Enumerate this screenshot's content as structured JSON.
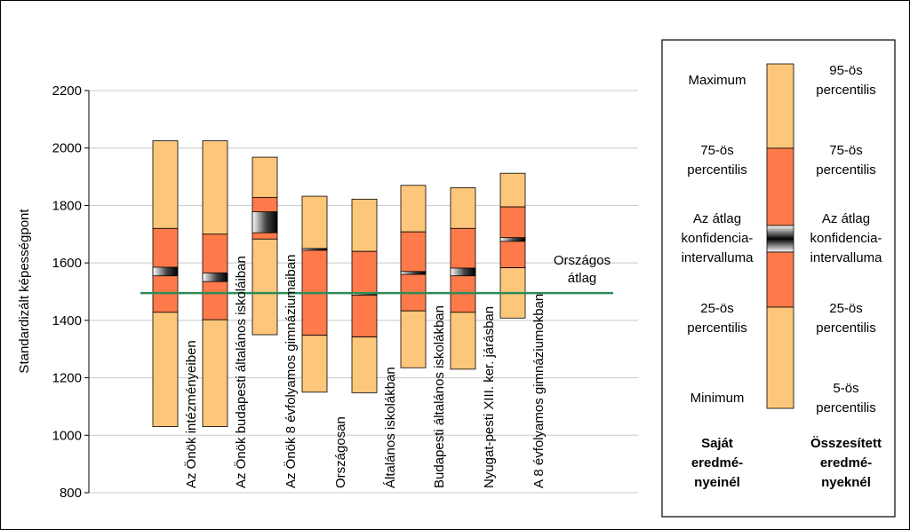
{
  "chart_data": {
    "type": "box",
    "ylabel": "Standardizált képességpont",
    "ylim": [
      800,
      2200
    ],
    "yticks": [
      800,
      1000,
      1200,
      1400,
      1600,
      1800,
      2000,
      2200
    ],
    "grid": true,
    "reference_line": {
      "value": 1495,
      "label_line1": "Országos",
      "label_line2": "átlag",
      "color": "#2e8b57"
    },
    "colors": {
      "outer": "#fcc77a",
      "inner": "#ff7a4b",
      "ci_dark": "#000000",
      "ci_light": "#ffffff",
      "frame": "#000000",
      "grid": "#c8c8c8"
    },
    "categories": [
      "Az Önök intézményeiben",
      "Az Önök budapesti általános iskoláiban",
      "Az Önök 8 évfolyamos gimnáziumaiban",
      "Országosan",
      "Általános iskolákban",
      "Budapesti általános iskolákban",
      "Nyugat-pesti XIII. ker. járásban",
      "A 8 évfolyamos gimnáziumokban"
    ],
    "boxes": [
      {
        "p5": 1030,
        "p25": 1428,
        "ci_low": 1555,
        "ci_high": 1585,
        "p75": 1720,
        "p95": 2025
      },
      {
        "p5": 1030,
        "p25": 1402,
        "ci_low": 1535,
        "ci_high": 1565,
        "p75": 1700,
        "p95": 2025
      },
      {
        "p5": 1350,
        "p25": 1683,
        "ci_low": 1705,
        "ci_high": 1778,
        "p75": 1828,
        "p95": 1968
      },
      {
        "p5": 1150,
        "p25": 1348,
        "ci_low": 1646,
        "ci_high": 1650,
        "p75": 1650,
        "p95": 1832
      },
      {
        "p5": 1148,
        "p25": 1342,
        "ci_low": 1488,
        "ci_high": 1495,
        "p75": 1640,
        "p95": 1822
      },
      {
        "p5": 1235,
        "p25": 1433,
        "ci_low": 1560,
        "ci_high": 1570,
        "p75": 1708,
        "p95": 1870
      },
      {
        "p5": 1230,
        "p25": 1428,
        "ci_low": 1555,
        "ci_high": 1582,
        "p75": 1720,
        "p95": 1862
      },
      {
        "p5": 1408,
        "p25": 1583,
        "ci_low": 1675,
        "ci_high": 1688,
        "p75": 1795,
        "p95": 1912
      }
    ]
  },
  "legend": {
    "left_labels": [
      [
        "Maximum"
      ],
      [
        "75-ös",
        "percentilis"
      ],
      [
        "Az átlag",
        "konfidencia-",
        "intervalluma"
      ],
      [
        "25-ös",
        "percentilis"
      ],
      [
        "Minimum"
      ]
    ],
    "right_labels": [
      [
        "95-ös",
        "percentilis"
      ],
      [
        "75-ös",
        "percentilis"
      ],
      [
        "Az átlag",
        "konfidencia-",
        "intervalluma"
      ],
      [
        "25-ös",
        "percentilis"
      ],
      [
        "5-ös",
        "percentilis"
      ]
    ],
    "left_footer": [
      "Saját",
      "eredmé-",
      "nyeinél"
    ],
    "right_footer": [
      "Összesített",
      "eredmé-",
      "nyeknél"
    ]
  }
}
